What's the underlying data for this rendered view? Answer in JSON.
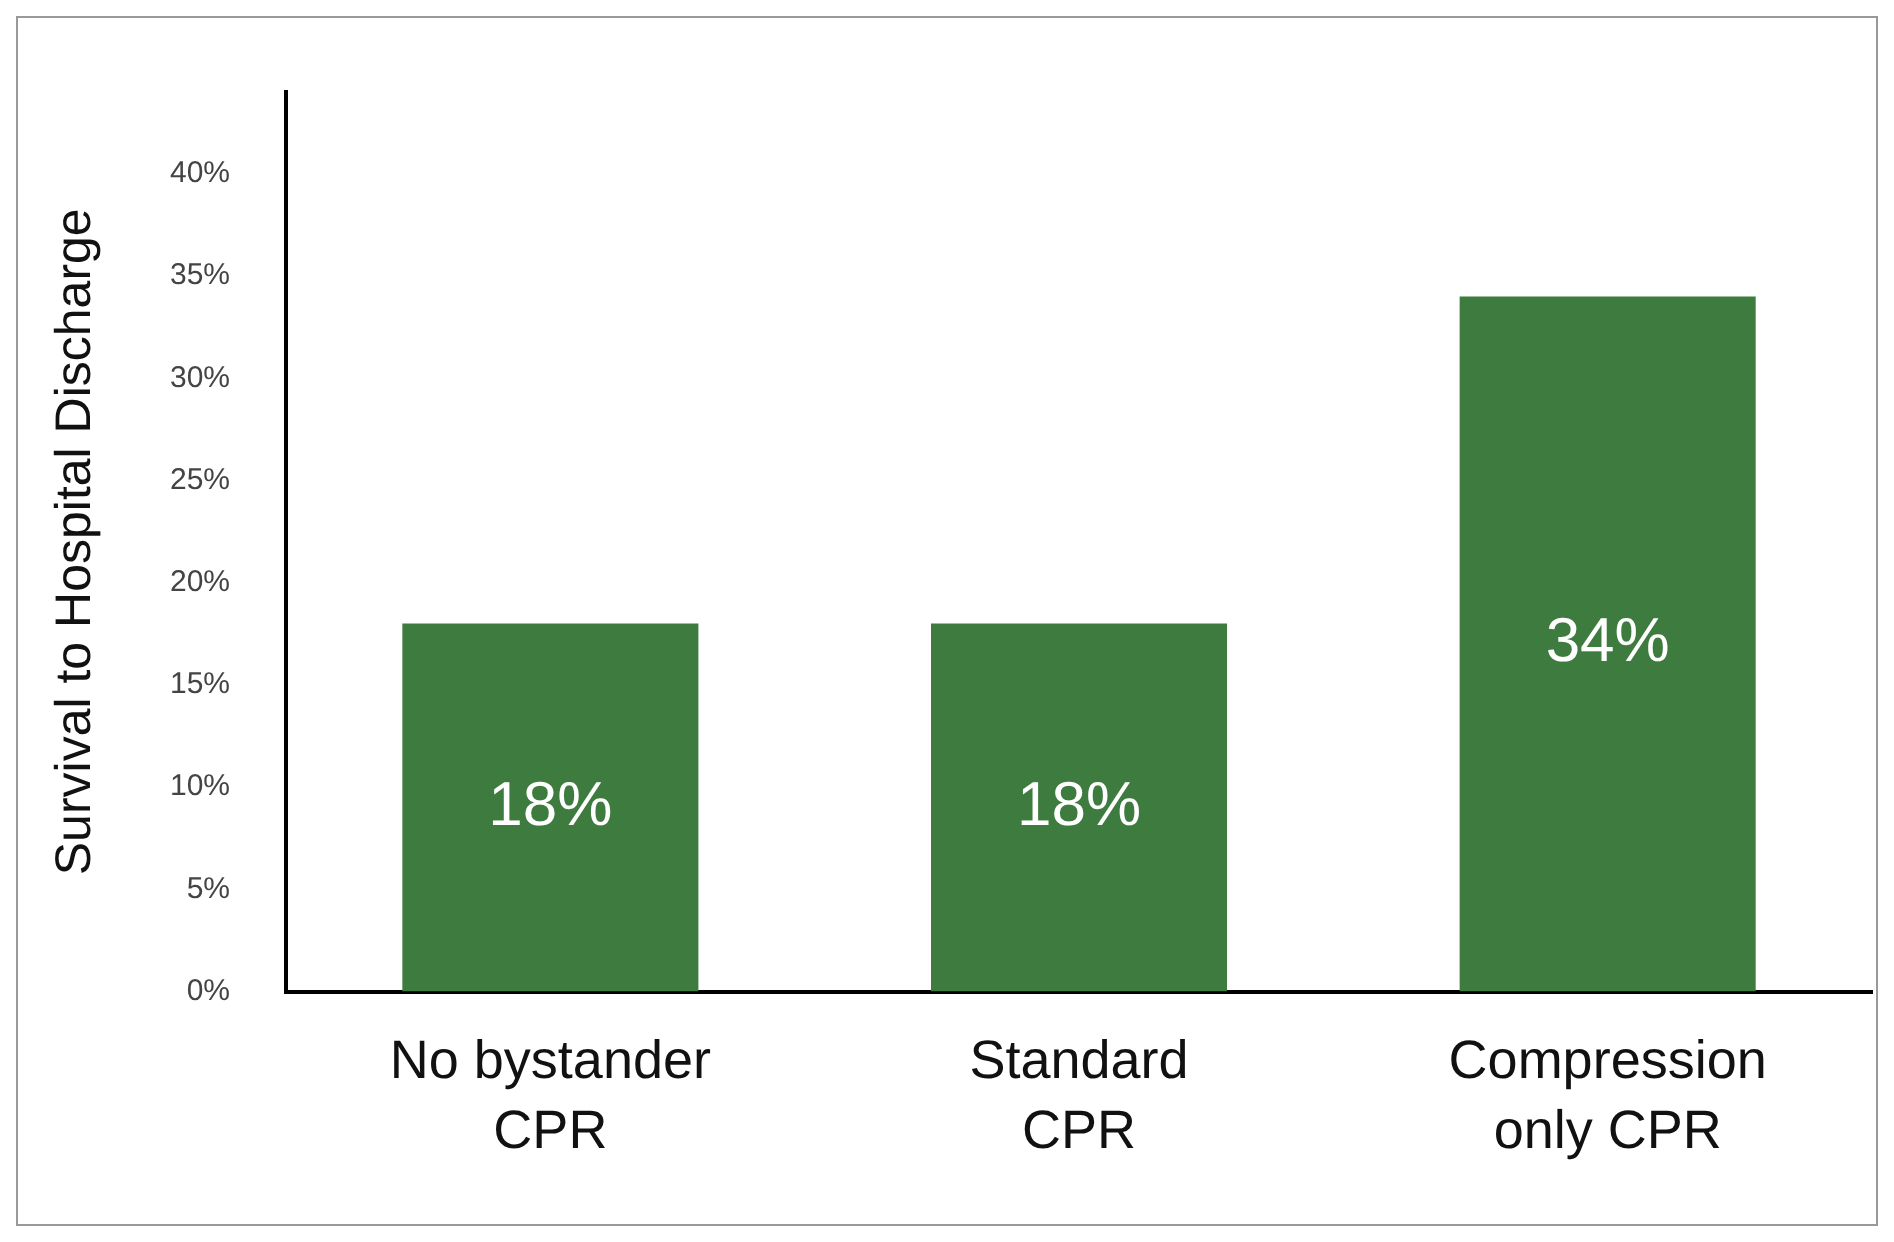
{
  "chart_data": {
    "type": "bar",
    "ylabel": "Survival to Hospital Discharge",
    "categories": [
      "No bystander CPR",
      "Standard CPR",
      "Compression only CPR"
    ],
    "values": [
      18,
      18,
      34
    ],
    "value_labels": [
      "18%",
      "18%",
      "34%"
    ],
    "color": "#3e7b3e",
    "ylim": [
      0,
      44
    ],
    "yticks": [
      {
        "value": 0,
        "label": "0%"
      },
      {
        "value": 5,
        "label": "5%"
      },
      {
        "value": 10,
        "label": "10%"
      },
      {
        "value": 15,
        "label": "15%"
      },
      {
        "value": 20,
        "label": "20%"
      },
      {
        "value": 25,
        "label": "25%"
      },
      {
        "value": 30,
        "label": "30%"
      },
      {
        "value": 35,
        "label": "35%"
      },
      {
        "value": 40,
        "label": "40%"
      }
    ],
    "grid": false,
    "legend": false
  }
}
